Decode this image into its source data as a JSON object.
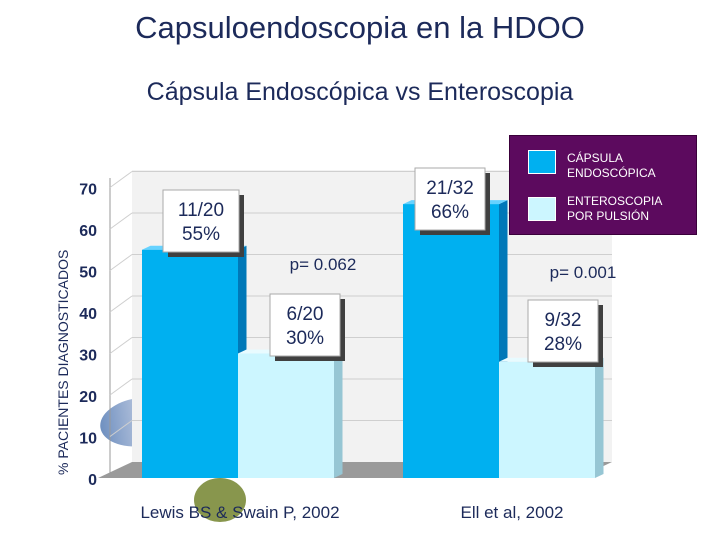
{
  "slide": {
    "title": "Capsuloendoscopia en la HDOO",
    "subtitle": "Cápsula Endoscópica vs Enteroscopia"
  },
  "legend": {
    "items": [
      {
        "line1": "CÁPSULA",
        "line2": "ENDOSCÓPICA",
        "color": "#00b0f0"
      },
      {
        "line1": "ENTEROSCOPIA",
        "line2": "POR PULSIÓN",
        "color": "#ccf6ff"
      }
    ]
  },
  "chart_data": {
    "type": "bar",
    "ylabel": "% PACIENTES DIAGNOSTICADOS",
    "ylim": [
      0,
      70
    ],
    "yticks": [
      "0",
      "10",
      "20",
      "30",
      "40",
      "50",
      "60",
      "70"
    ],
    "categories": [
      "Lewis BS & Swain P, 2002",
      "Ell et al, 2002"
    ],
    "series": [
      {
        "name": "CÁPSULA ENDOSCÓPICA",
        "values": [
          55,
          66
        ],
        "labels": [
          "11/20",
          "21/32"
        ],
        "pct": [
          "55%",
          "66%"
        ]
      },
      {
        "name": "ENTEROSCOPIA POR PULSIÓN",
        "values": [
          30,
          28
        ],
        "labels": [
          "6/20",
          "9/32"
        ],
        "pct": [
          "30%",
          "28%"
        ]
      }
    ],
    "pvalues": [
      "p= 0.062",
      "p= 0.001"
    ]
  }
}
